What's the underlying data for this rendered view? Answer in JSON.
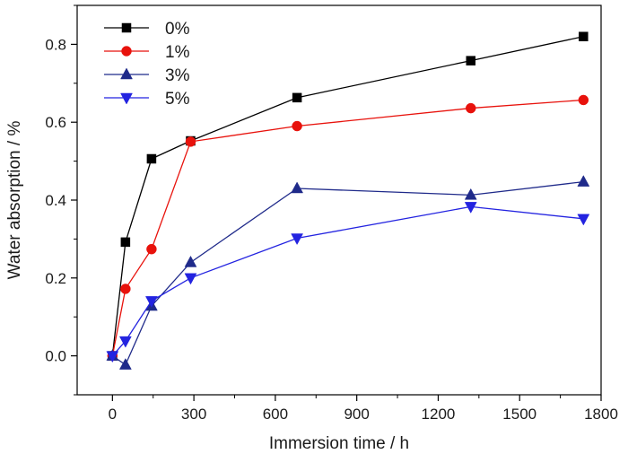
{
  "chart_data": {
    "type": "line",
    "title": "",
    "xlabel": "Immersion time / h",
    "ylabel": "Water absorption / %",
    "xlim": [
      -130,
      1800
    ],
    "ylim": [
      -0.1,
      0.9
    ],
    "xticks": [
      0,
      300,
      600,
      900,
      1200,
      1500,
      1800
    ],
    "xtick_labels": [
      "0",
      "300",
      "600",
      "900",
      "1200",
      "1500",
      "1800"
    ],
    "yticks": [
      0.0,
      0.2,
      0.4,
      0.6,
      0.8
    ],
    "ytick_labels": [
      "0.0",
      "0.2",
      "0.4",
      "0.6",
      "0.8"
    ],
    "grid": false,
    "legend_position": "top-left",
    "series": [
      {
        "name": "0%",
        "color": "#000000",
        "marker": "square",
        "x": [
          0,
          48,
          144,
          288,
          680,
          1320,
          1735
        ],
        "y": [
          0.0,
          0.292,
          0.506,
          0.552,
          0.663,
          0.758,
          0.82
        ]
      },
      {
        "name": "1%",
        "color": "#e8120c",
        "marker": "circle",
        "x": [
          0,
          48,
          144,
          288,
          680,
          1320,
          1735
        ],
        "y": [
          0.0,
          0.172,
          0.274,
          0.55,
          0.59,
          0.636,
          0.657
        ]
      },
      {
        "name": "3%",
        "color": "#1f2a8a",
        "marker": "triangle-up",
        "x": [
          0,
          48,
          144,
          288,
          680,
          1320,
          1735
        ],
        "y": [
          0.0,
          -0.023,
          0.128,
          0.24,
          0.43,
          0.413,
          0.447
        ]
      },
      {
        "name": "5%",
        "color": "#2323e0",
        "marker": "triangle-down",
        "x": [
          0,
          48,
          144,
          288,
          680,
          1320,
          1735
        ],
        "y": [
          0.0,
          0.038,
          0.141,
          0.2,
          0.302,
          0.383,
          0.352
        ]
      }
    ]
  }
}
